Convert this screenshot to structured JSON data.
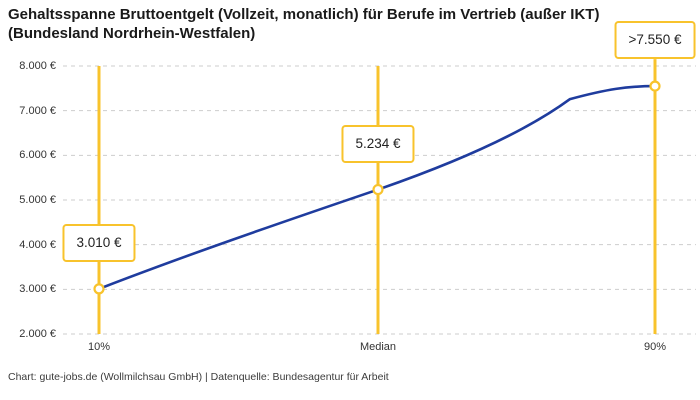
{
  "header": {
    "title_line1": "Gehaltsspanne Bruttoentgelt (Vollzeit, monatlich) für Berufe im Vertrieb (außer IKT)",
    "title_line2": "(Bundesland Nordrhein-Westfalen)"
  },
  "footer": {
    "credit": "Chart: gute-jobs.de (Wollmilchsau GmbH) | Datenquelle: Bundesagentur für Arbeit"
  },
  "chart_data": {
    "type": "line",
    "title": "Gehaltsspanne Bruttoentgelt (Vollzeit, monatlich) für Berufe im Vertrieb (außer IKT) (Bundesland Nordrhein-Westfalen)",
    "categories": [
      "10%",
      "Median",
      "90%"
    ],
    "values": [
      3010,
      5234,
      7550
    ],
    "point_labels": [
      "3.010 €",
      "5.234 €",
      ">7.550 €"
    ],
    "ylim": [
      2000,
      8000
    ],
    "y_tick_step": 1000,
    "y_tick_labels": [
      "2.000 €",
      "3.000 €",
      "4.000 €",
      "5.000 €",
      "6.000 €",
      "7.000 €",
      "8.000 €"
    ],
    "xlabel": "",
    "ylabel": "",
    "grid": "horizontal-dashed",
    "legend": "none",
    "line_color": "#1F3C9E",
    "accent_color": "#F8C32C",
    "grid_color": "#CDCDCD",
    "marker": "open-circle",
    "annotations": "yellow vertical line at each percentile with boxed value label above the data point"
  }
}
